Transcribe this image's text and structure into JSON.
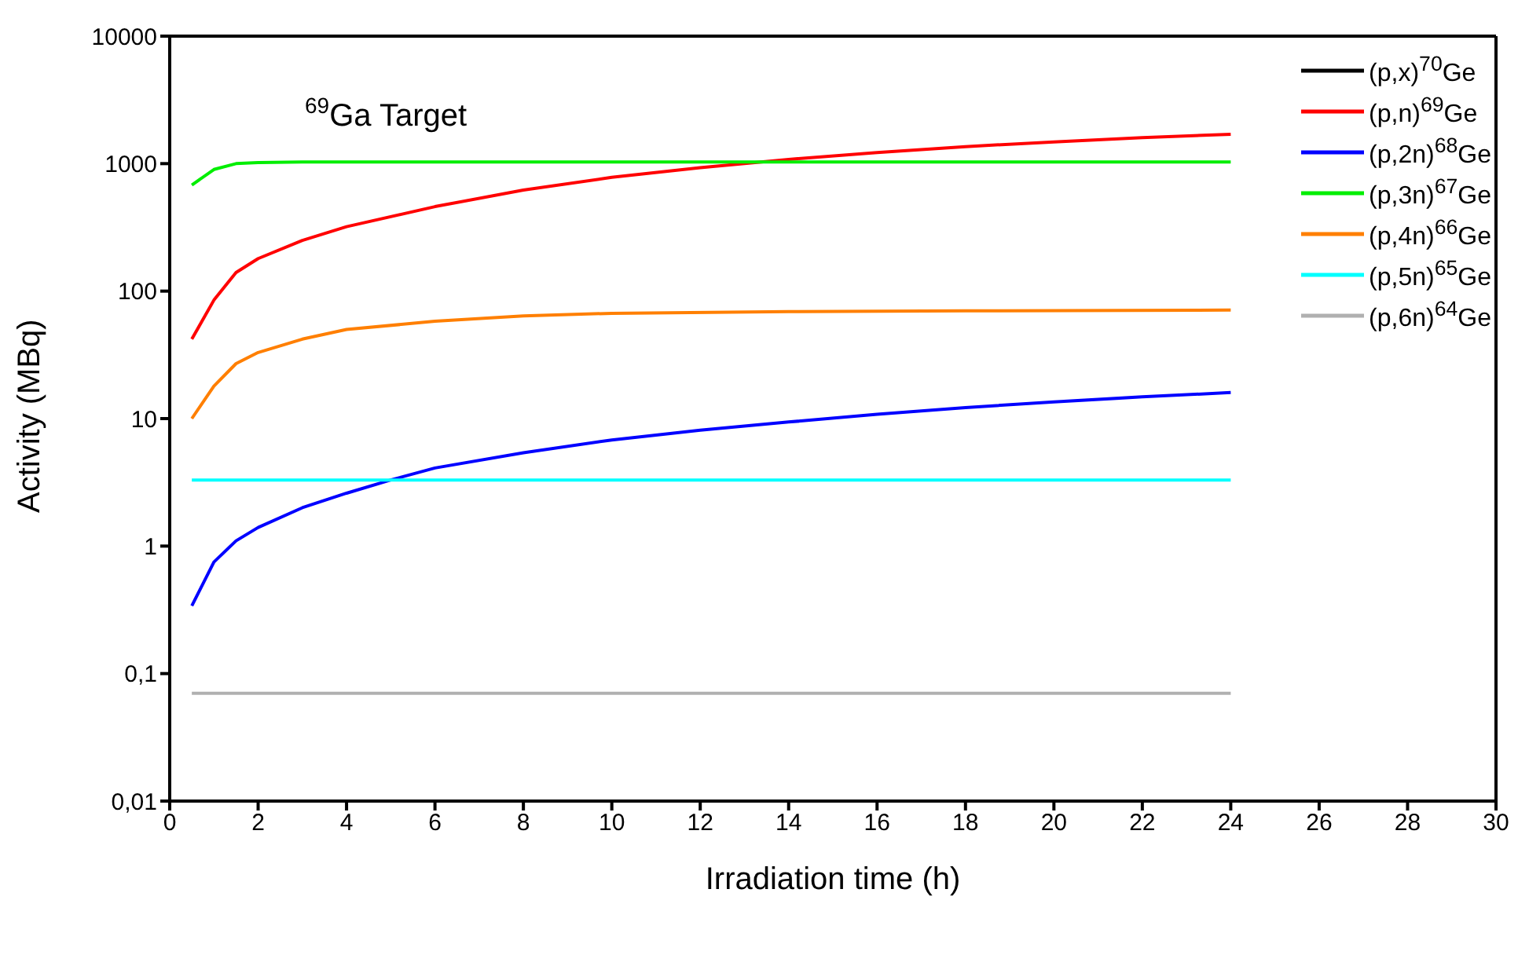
{
  "chart_data": {
    "type": "line",
    "title": "$^{69}$Ga Target",
    "xlabel": "Irradiation time (h)",
    "ylabel": "Activity (MBq)",
    "log": "y",
    "legend": "top right",
    "marker": "none",
    "line_style": "solid",
    "xlim": [
      0,
      30
    ],
    "xticks": [
      0,
      2,
      4,
      6,
      8,
      10,
      12,
      14,
      16,
      18,
      20,
      22,
      24,
      26,
      28,
      30
    ],
    "ylim": [
      0.01,
      10000
    ],
    "yticks": [
      {
        "value": 0.01,
        "label": "0,01"
      },
      {
        "value": 0.1,
        "label": "0,1"
      },
      1,
      10,
      100,
      1000,
      10000
    ],
    "series": [
      {
        "name": "(p,x)$^{70}$Ge",
        "color": "#000000"
      },
      {
        "name": "(p,n)$^{69}$Ge",
        "color": "#ff0000",
        "x": [
          0.5,
          1,
          1.5,
          2,
          3,
          4,
          6,
          8,
          10,
          12,
          14,
          16,
          18,
          20,
          22,
          24
        ],
        "values": [
          42,
          85,
          140,
          180,
          250,
          320,
          460,
          620,
          780,
          930,
          1080,
          1220,
          1360,
          1480,
          1600,
          1700
        ]
      },
      {
        "name": "(p,2n)$^{68}$Ge",
        "color": "#0000ff",
        "x": [
          0.5,
          1,
          1.5,
          2,
          3,
          4,
          5,
          6,
          8,
          10,
          12,
          14,
          16,
          18,
          20,
          22,
          24
        ],
        "values": [
          0.34,
          0.75,
          1.1,
          1.4,
          2.0,
          2.6,
          3.3,
          4.1,
          5.4,
          6.8,
          8.1,
          9.4,
          10.8,
          12.2,
          13.5,
          14.8,
          16
        ]
      },
      {
        "name": "(p,3n)$^{67}$Ge",
        "color": "#00ee00",
        "x": [
          0.5,
          1,
          1.5,
          2,
          3,
          24
        ],
        "values": [
          680,
          900,
          1000,
          1020,
          1030,
          1030
        ]
      },
      {
        "name": "(p,4n)$^{66}$Ge",
        "color": "#ff7f00",
        "x": [
          0.5,
          1,
          1.5,
          2,
          3,
          4,
          6,
          8,
          10,
          14,
          18,
          24
        ],
        "values": [
          10,
          18,
          27,
          33,
          42,
          50,
          58,
          64,
          67,
          69,
          70,
          71
        ]
      },
      {
        "name": "(p,5n)$^{65}$Ge",
        "color": "#00ffff",
        "x": [
          0.5,
          24
        ],
        "values": [
          3.3,
          3.3
        ]
      },
      {
        "name": "(p,6n)$^{64}$Ge",
        "color": "#b0b0b0",
        "x": [
          0.5,
          24
        ],
        "values": [
          0.07,
          0.07
        ]
      }
    ]
  }
}
